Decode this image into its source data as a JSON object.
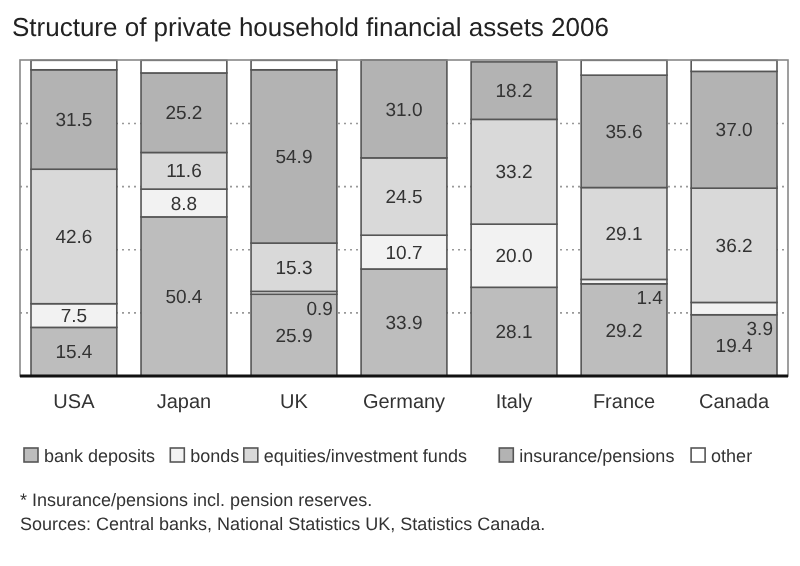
{
  "chart_data": {
    "type": "bar",
    "title": "Structure of private household financial assets 2006",
    "stacked": true,
    "categories": [
      "USA",
      "Japan",
      "UK",
      "Germany",
      "Italy",
      "France",
      "Canada"
    ],
    "series": [
      {
        "name": "bank deposits",
        "color": "#bdbdbd",
        "values": [
          15.4,
          50.4,
          25.9,
          33.9,
          28.1,
          29.2,
          19.4
        ],
        "value_labels": [
          "15.4",
          "50.4",
          "25.9",
          "33.9",
          "28.1",
          "29.2",
          "19.4"
        ]
      },
      {
        "name": "bonds",
        "color": "#f2f2f2",
        "values": [
          7.5,
          8.8,
          0.9,
          10.7,
          20.0,
          1.4,
          3.9
        ],
        "value_labels": [
          "7.5",
          "8.8",
          "0.9",
          "10.7",
          "20.0",
          "1.4",
          "3.9"
        ]
      },
      {
        "name": "equities/investment funds",
        "color": "#d9d9d9",
        "values": [
          42.6,
          11.6,
          15.3,
          24.5,
          33.2,
          29.1,
          36.2
        ],
        "value_labels": [
          "42.6",
          "11.6",
          "15.3",
          "24.5",
          "33.2",
          "29.1",
          "36.2"
        ]
      },
      {
        "name": "insurance/pensions",
        "color": "#b3b3b3",
        "values": [
          31.5,
          25.2,
          54.9,
          31.0,
          18.2,
          35.6,
          37.0
        ],
        "value_labels": [
          "31.5",
          "25.2",
          "54.9",
          "31.0",
          "18.2",
          "35.6",
          "37.0"
        ]
      },
      {
        "name": "other",
        "color": "#ffffff",
        "values": [
          3.0,
          4.0,
          3.0,
          null,
          null,
          4.7,
          3.5
        ],
        "value_labels": [
          null,
          null,
          null,
          null,
          null,
          null,
          null
        ]
      }
    ],
    "ylim": [
      0,
      100.1
    ],
    "yticks": [
      {
        "value": 20,
        "label": null
      },
      {
        "value": 40,
        "label": null
      },
      {
        "value": 60,
        "label": null
      },
      {
        "value": 80,
        "label": null
      }
    ],
    "grid": "y",
    "tick_labels": "x",
    "legend": "bottom",
    "annotations": [
      "* Insurance/pensions incl. pension reserves.",
      "Sources: Central banks, National Statistics UK, Statistics Canada."
    ]
  }
}
